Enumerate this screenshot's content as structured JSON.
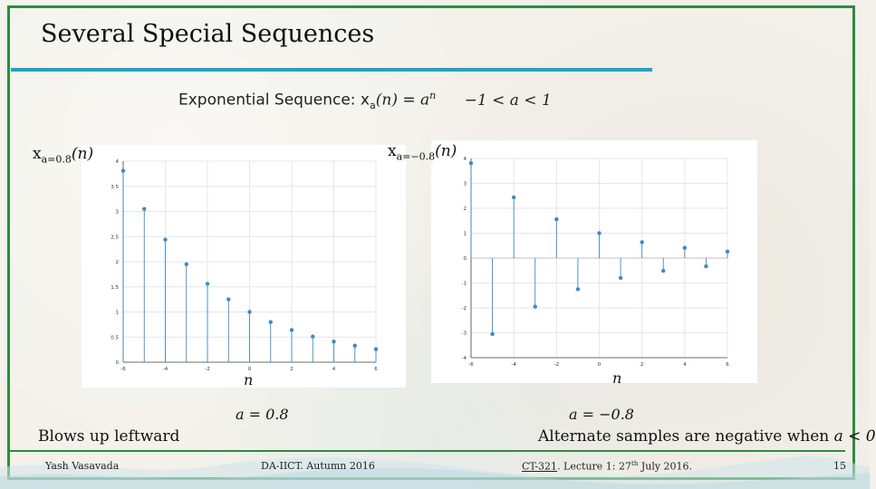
{
  "slide": {
    "title": "Several Special Sequences",
    "subtitle_prefix": "Exponential Sequence: ",
    "subtitle_x": "x",
    "subtitle_sub": "a",
    "subtitle_expr": "(n) = a",
    "subtitle_sup": "n",
    "subtitle_range": "−1  <  a  <  1",
    "left_note": "Blows up leftward",
    "right_note_prefix": "Alternate samples are negative when ",
    "right_note_math": "a < 0",
    "slide_number": "15"
  },
  "left_plot": {
    "ylabel_x": "x",
    "ylabel_sub": "a=0.8",
    "ylabel_arg": "(n)",
    "xlabel": "n",
    "param": "a = 0.8"
  },
  "right_plot": {
    "ylabel_x": "x",
    "ylabel_sub": "a=−0.8",
    "ylabel_arg": "(n)",
    "xlabel": "n",
    "param": "a = −0.8"
  },
  "footer": {
    "author": "Yash Vasavada",
    "course_term": "DA-IICT.  Autumn 2016",
    "course_code": "CT-321",
    "lecture_prefix": ". Lecture 1:  27",
    "lecture_sup": "th",
    "lecture_suffix": " July 2016."
  },
  "chart_data": [
    {
      "type": "stem",
      "x": [
        -6,
        -5,
        -4,
        -3,
        -2,
        -1,
        0,
        1,
        2,
        3,
        4,
        5,
        6
      ],
      "values": [
        3.81,
        3.05,
        2.44,
        1.95,
        1.56,
        1.25,
        1.0,
        0.8,
        0.64,
        0.51,
        0.41,
        0.33,
        0.26
      ],
      "xlim": [
        -6,
        6
      ],
      "ylim": [
        0,
        4
      ],
      "xticks": [
        -6,
        -4,
        -2,
        0,
        2,
        4,
        6
      ],
      "yticks": [
        0,
        0.5,
        1,
        1.5,
        2,
        2.5,
        3,
        3.5,
        4
      ],
      "grid": true,
      "color": "#3f88c5"
    },
    {
      "type": "stem",
      "x": [
        -6,
        -5,
        -4,
        -3,
        -2,
        -1,
        0,
        1,
        2,
        3,
        4,
        5,
        6
      ],
      "values": [
        3.81,
        -3.05,
        2.44,
        -1.95,
        1.56,
        -1.25,
        1.0,
        -0.8,
        0.64,
        -0.51,
        0.41,
        -0.33,
        0.26
      ],
      "xlim": [
        -6,
        6
      ],
      "ylim": [
        -4,
        4
      ],
      "xticks": [
        -6,
        -4,
        -2,
        0,
        2,
        4,
        6
      ],
      "yticks": [
        -4,
        -3,
        -2,
        -1,
        0,
        1,
        2,
        3,
        4
      ],
      "grid": true,
      "color": "#3f88c5"
    }
  ]
}
